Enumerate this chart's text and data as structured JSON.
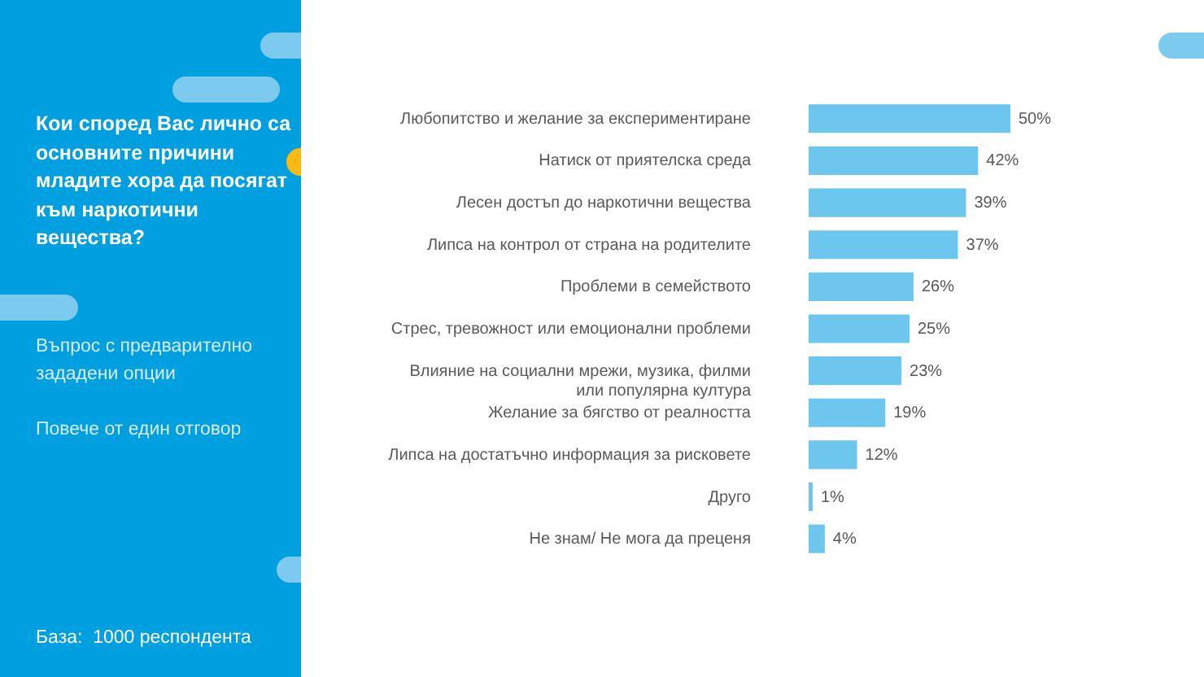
{
  "chart_data": {
    "type": "bar",
    "orientation": "horizontal",
    "title": "Кои според Вас лично са основните причини младите хора да посягат към наркотични вещества?",
    "annotations": [
      "Въпрос с предварително зададени опции",
      "Повече от един отговор",
      "База:  1000 респондента"
    ],
    "categories": [
      "Любопитство и желание за експериментиране",
      "Натиск от приятелска среда",
      "Лесен достъп до наркотични вещества",
      "Липса на контрол от страна на родителите",
      "Проблеми в семейството",
      "Стрес, тревожност или емоционални проблеми",
      "Влияние на социални мрежи, музика, филми или популярна култура",
      "Желание за бягство от реалността",
      "Липса на достатъчно информация за рисковете",
      "Друго",
      "Не знам/ Не мога да преценя"
    ],
    "values": [
      50,
      42,
      39,
      37,
      26,
      25,
      23,
      19,
      12,
      1,
      4
    ],
    "value_labels": [
      "50%",
      "42%",
      "39%",
      "37%",
      "26%",
      "25%",
      "23%",
      "19%",
      "12%",
      "1%",
      "4%"
    ],
    "color": "#6cc6ee"
  }
}
